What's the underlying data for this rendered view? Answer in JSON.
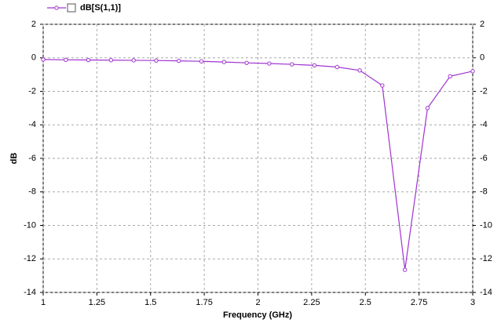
{
  "chart_data": {
    "type": "line",
    "xlabel": "Frequency (GHz)",
    "ylabel": "dB",
    "x": [
      1,
      1.1053,
      1.2105,
      1.3158,
      1.4211,
      1.5263,
      1.6316,
      1.7368,
      1.8421,
      1.9474,
      2.0526,
      2.1579,
      2.2632,
      2.3684,
      2.4737,
      2.5789,
      2.6842,
      2.7895,
      2.8947,
      3
    ],
    "series": [
      {
        "name": "dB[S(1,1)]",
        "color": "#a033d0",
        "values": [
          -0.1,
          -0.12,
          -0.13,
          -0.14,
          -0.15,
          -0.16,
          -0.18,
          -0.21,
          -0.25,
          -0.3,
          -0.34,
          -0.39,
          -0.45,
          -0.55,
          -0.75,
          -1.65,
          -12.65,
          -3.0,
          -1.1,
          -0.8
        ]
      }
    ],
    "xlim": [
      1,
      3
    ],
    "xticks": [
      1,
      1.25,
      1.5,
      1.75,
      2,
      2.25,
      2.5,
      2.75,
      3
    ],
    "ylim": [
      -14,
      2
    ],
    "yticks": [
      -14,
      -12,
      -10,
      -8,
      -6,
      -4,
      -2,
      0,
      2
    ],
    "y2lim": [
      -14,
      2
    ],
    "y2ticks": [
      -14,
      -12,
      -10,
      -8,
      -6,
      -4,
      -2,
      0,
      2
    ],
    "grid": true,
    "legend": "top-left"
  }
}
